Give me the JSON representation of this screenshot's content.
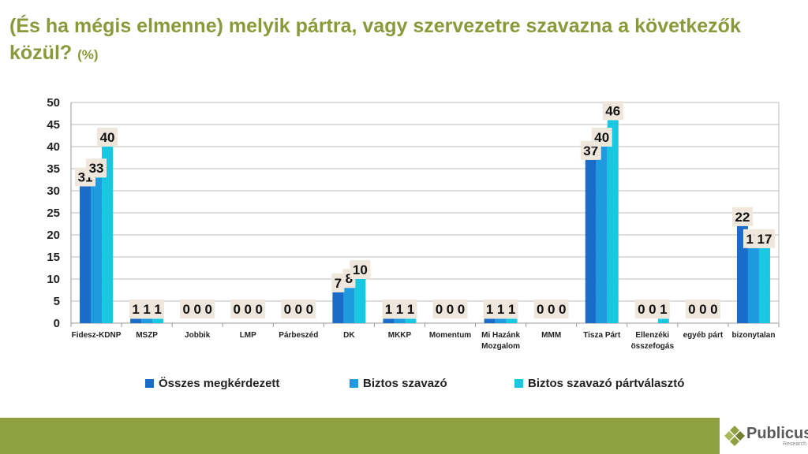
{
  "title": {
    "main": "(És ha mégis elmenne) melyik pártra, vagy szervezetre szavazna a következők közül?",
    "unit": "(%)"
  },
  "chart_data": {
    "type": "bar",
    "categories": [
      "Fidesz-KDNP",
      "MSZP",
      "Jobbik",
      "LMP",
      "Párbeszéd",
      "DK",
      "MKKP",
      "Momentum",
      "Mi Hazánk Mozgalom",
      "MMM",
      "Tisza Párt",
      "Ellenzéki összefogás",
      "egyéb párt",
      "bizonytalan"
    ],
    "category_lines": [
      [
        "Fidesz-KDNP"
      ],
      [
        "MSZP"
      ],
      [
        "Jobbik"
      ],
      [
        "LMP"
      ],
      [
        "Párbeszéd"
      ],
      [
        "DK"
      ],
      [
        "MKKP"
      ],
      [
        "Momentum"
      ],
      [
        "Mi Hazánk",
        "Mozgalom"
      ],
      [
        "MMM"
      ],
      [
        "Tisza Párt"
      ],
      [
        "Ellenzéki",
        "összefogás"
      ],
      [
        "egyéb párt"
      ],
      [
        "bizonytalan"
      ]
    ],
    "series": [
      {
        "name": "Összes megkérdezett",
        "color": "#1b6cc9",
        "values": [
          31,
          1,
          0,
          0,
          0,
          7,
          1,
          0,
          1,
          0,
          37,
          0,
          0,
          22
        ]
      },
      {
        "name": "Biztos szavazó",
        "color": "#1e9ae0",
        "values": [
          33,
          1,
          0,
          0,
          0,
          8,
          1,
          0,
          1,
          0,
          40,
          0,
          0,
          17
        ]
      },
      {
        "name": "Biztos szavazó pártválasztó",
        "color": "#17c8e0",
        "values": [
          40,
          1,
          0,
          0,
          0,
          10,
          1,
          0,
          1,
          0,
          46,
          1,
          0,
          17
        ]
      }
    ],
    "yticks": [
      0,
      5,
      10,
      15,
      20,
      25,
      30,
      35,
      40,
      45,
      50
    ],
    "ylim": [
      0,
      50
    ],
    "grid": true,
    "legend": "bottom"
  },
  "logo": {
    "name": "Publicus",
    "sub": "Research"
  }
}
